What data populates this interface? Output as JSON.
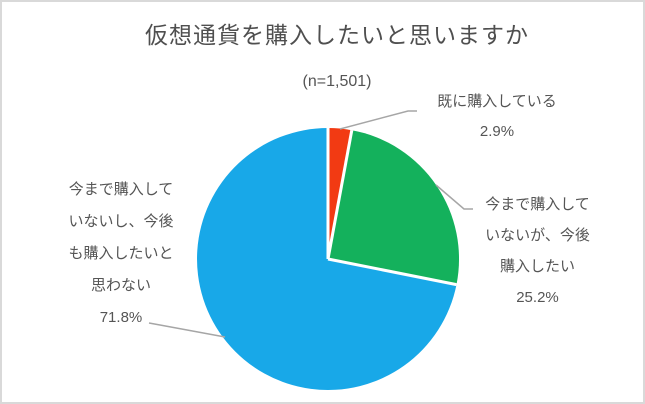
{
  "window": {
    "background": "#ffffff",
    "border_color": "#d9d9d9"
  },
  "chart_data": {
    "type": "pie",
    "title": "仮想通貨を購入したいと思いますか",
    "subtitle": "(n=1,501)",
    "sample_size": 1501,
    "categories": [
      "既に購入している",
      "今まで購入していないが、今後購入したい",
      "今まで購入していないし、今後も購入したいと思わない"
    ],
    "values": [
      2.9,
      25.2,
      71.8
    ],
    "value_labels": [
      "2.9%",
      "25.2%",
      "71.8%"
    ],
    "unit": "%",
    "colors": [
      "#f23a13",
      "#14b15c",
      "#18a8e8"
    ],
    "start_angle_deg": 0,
    "direction": "clockwise",
    "slice_gap_color": "#ffffff",
    "leader_line_color": "#a6a6a6",
    "text_color": "#555555",
    "callouts": [
      {
        "lines": [
          "既に購入している"
        ],
        "value": "2.9%"
      },
      {
        "lines": [
          "今まで購入して",
          "いないが、今後",
          "購入したい"
        ],
        "value": "25.2%"
      },
      {
        "lines": [
          "今まで購入して",
          "いないし、今後",
          "も購入したいと",
          "思わない"
        ],
        "value": "71.8%"
      }
    ]
  }
}
